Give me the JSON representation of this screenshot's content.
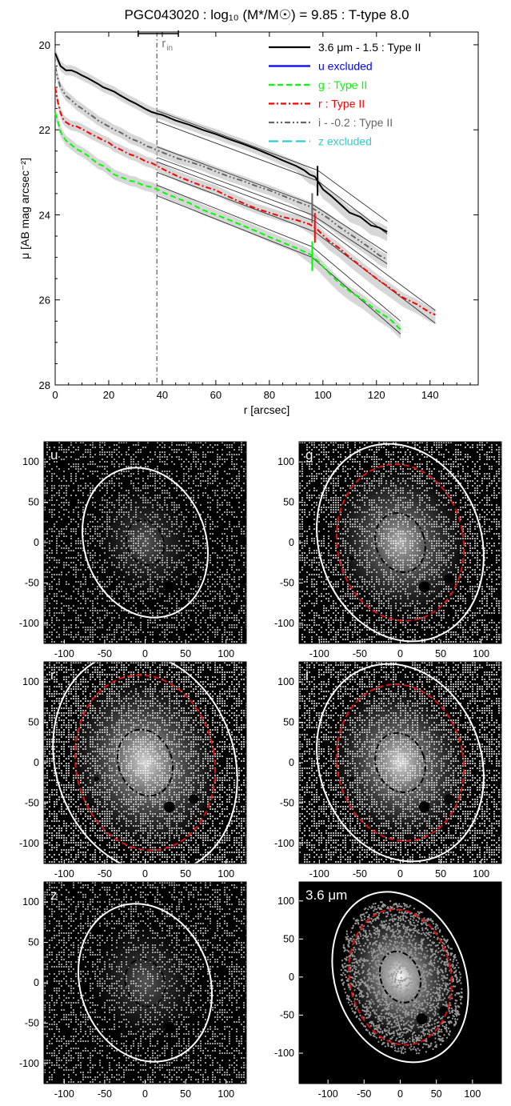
{
  "chart_data": [
    {
      "type": "line",
      "title": "PGC043020 : log₁₀ (M*/M☉) = 9.85 : T-type 8.0",
      "xlabel": "r [arcsec]",
      "ylabel": "μ [AB mag arcsec⁻²]",
      "xlim": [
        0,
        158
      ],
      "ylim": [
        28,
        19.7
      ],
      "y_inverted": true,
      "grid": false,
      "legend_position": "top-right",
      "x_ticks": [
        0,
        20,
        40,
        60,
        80,
        100,
        120,
        140
      ],
      "y_ticks": [
        20,
        22,
        24,
        26,
        28
      ],
      "annotation_label": "r",
      "annotation_label_sub": "in",
      "r_in": 38,
      "r_in_range": [
        31,
        46
      ],
      "series": [
        {
          "name": "3.6 μm - 1.5 : Type II",
          "color": "#000000",
          "dash": "solid",
          "x": [
            0,
            1,
            2,
            4,
            6,
            8,
            10,
            12,
            14,
            16,
            18,
            20,
            22,
            24,
            26,
            28,
            30,
            32,
            34,
            36,
            38,
            40,
            45,
            50,
            55,
            60,
            65,
            70,
            75,
            80,
            85,
            90,
            93,
            95,
            97,
            100,
            103,
            106,
            110,
            114,
            118,
            121,
            124
          ],
          "y": [
            20.2,
            20.35,
            20.5,
            20.6,
            20.6,
            20.65,
            20.72,
            20.78,
            20.85,
            20.92,
            21.0,
            21.05,
            21.1,
            21.18,
            21.25,
            21.32,
            21.38,
            21.45,
            21.52,
            21.58,
            21.62,
            21.65,
            21.78,
            21.88,
            22.0,
            22.1,
            22.22,
            22.33,
            22.45,
            22.58,
            22.72,
            22.85,
            22.95,
            23.05,
            23.1,
            23.4,
            23.55,
            23.72,
            23.95,
            24.05,
            24.25,
            24.3,
            24.4
          ],
          "profile_break": 98
        },
        {
          "name": "u excluded",
          "color": "#0000ff",
          "dash": "solid",
          "x": [],
          "y": []
        },
        {
          "name": "g : Type II",
          "color": "#00ff00",
          "dash": "dashed",
          "x": [
            0,
            1,
            2,
            3,
            4,
            6,
            8,
            10,
            12,
            14,
            16,
            18,
            20,
            22,
            24,
            26,
            28,
            30,
            32,
            34,
            36,
            38,
            42,
            46,
            50,
            55,
            60,
            65,
            70,
            75,
            80,
            85,
            90,
            95,
            98,
            102,
            106,
            110,
            115,
            120,
            125,
            129
          ],
          "y": [
            21.6,
            21.8,
            22.05,
            22.15,
            22.25,
            22.35,
            22.45,
            22.52,
            22.6,
            22.7,
            22.8,
            22.85,
            22.95,
            23.05,
            23.1,
            23.15,
            23.2,
            23.22,
            23.28,
            23.32,
            23.35,
            23.4,
            23.52,
            23.62,
            23.72,
            23.88,
            24.0,
            24.12,
            24.25,
            24.38,
            24.52,
            24.65,
            24.78,
            24.92,
            25.08,
            25.35,
            25.6,
            25.8,
            26.0,
            26.25,
            26.45,
            26.7
          ],
          "profile_break": 96
        },
        {
          "name": "r : Type II",
          "color": "#ff0000",
          "dash": "dashdot",
          "x": [
            0,
            1,
            2,
            3,
            4,
            6,
            8,
            10,
            12,
            14,
            16,
            18,
            20,
            22,
            24,
            26,
            28,
            30,
            32,
            34,
            36,
            38,
            42,
            46,
            50,
            55,
            60,
            65,
            70,
            75,
            80,
            85,
            90,
            95,
            98,
            102,
            106,
            110,
            115,
            120,
            125,
            130,
            135,
            140,
            142
          ],
          "y": [
            21.0,
            21.35,
            21.6,
            21.75,
            21.82,
            21.9,
            21.92,
            21.98,
            22.05,
            22.12,
            22.18,
            22.25,
            22.3,
            22.4,
            22.45,
            22.52,
            22.58,
            22.62,
            22.68,
            22.75,
            22.78,
            22.85,
            22.98,
            23.1,
            23.2,
            23.32,
            23.42,
            23.58,
            23.72,
            23.85,
            23.95,
            24.05,
            24.12,
            24.22,
            24.35,
            24.6,
            24.78,
            25.0,
            25.25,
            25.5,
            25.72,
            25.95,
            26.1,
            26.3,
            26.35
          ],
          "profile_break": 97
        },
        {
          "name": "i - -0.2 : Type II",
          "color": "#666666",
          "dash": "dashdotdot",
          "x": [
            0,
            1,
            2,
            4,
            6,
            8,
            10,
            12,
            14,
            16,
            18,
            20,
            22,
            24,
            26,
            28,
            30,
            32,
            34,
            36,
            38,
            42,
            46,
            50,
            55,
            60,
            65,
            70,
            75,
            80,
            85,
            90,
            95,
            98,
            102,
            106,
            110,
            114,
            118,
            121,
            124
          ],
          "y": [
            20.5,
            20.8,
            21.0,
            21.2,
            21.3,
            21.42,
            21.5,
            21.6,
            21.68,
            21.78,
            21.85,
            21.92,
            22.0,
            22.05,
            22.12,
            22.2,
            22.25,
            22.3,
            22.38,
            22.42,
            22.48,
            22.58,
            22.68,
            22.75,
            22.85,
            22.98,
            23.1,
            23.2,
            23.32,
            23.42,
            23.55,
            23.68,
            23.8,
            23.92,
            24.08,
            24.28,
            24.45,
            24.62,
            24.8,
            24.95,
            25.05
          ],
          "profile_break": 96
        },
        {
          "name": "z excluded",
          "color": "#33cccc",
          "dash": "longdash",
          "x": [],
          "y": []
        }
      ],
      "fit_segments": [
        {
          "series": "3.6 μm - 1.5 : Type II",
          "x": [
            38,
            98,
            124
          ],
          "y": [
            21.55,
            22.95,
            24.15
          ]
        },
        {
          "series": "3.6 μm - 1.5 : Type II",
          "x": [
            38,
            98,
            124
          ],
          "y": [
            21.8,
            23.2,
            24.45
          ]
        },
        {
          "series": "i - -0.2 : Type II",
          "x": [
            38,
            96,
            124
          ],
          "y": [
            22.4,
            23.75,
            24.9
          ]
        },
        {
          "series": "i - -0.2 : Type II",
          "x": [
            38,
            96,
            124
          ],
          "y": [
            22.65,
            24.0,
            25.15
          ]
        },
        {
          "series": "r : Type II",
          "x": [
            38,
            97,
            142
          ],
          "y": [
            22.75,
            24.15,
            26.25
          ]
        },
        {
          "series": "r : Type II",
          "x": [
            38,
            97,
            142
          ],
          "y": [
            23.0,
            24.4,
            26.55
          ]
        },
        {
          "series": "g : Type II",
          "x": [
            38,
            96,
            129
          ],
          "y": [
            23.3,
            24.75,
            26.5
          ]
        },
        {
          "series": "g : Type II",
          "x": [
            38,
            96,
            129
          ],
          "y": [
            23.55,
            25.0,
            26.8
          ]
        }
      ]
    },
    {
      "type": "image_panels",
      "x_ticks_offset": [
        -100,
        -50,
        0,
        50,
        100
      ],
      "y_ticks_offset": [
        100,
        50,
        0,
        -50,
        -100
      ],
      "panels": [
        {
          "label": "u",
          "xlim": [
            -125,
            125
          ],
          "ylim": [
            -125,
            125
          ],
          "has_break": false,
          "outer_rx": 75,
          "outer_ry": 95,
          "tilt": -20,
          "noise": "faint"
        },
        {
          "label": "g",
          "xlim": [
            -125,
            125
          ],
          "ylim": [
            -125,
            125
          ],
          "has_break": true,
          "outer_rx": 100,
          "outer_ry": 125,
          "tilt": -20,
          "noise": "medium"
        },
        {
          "label": "r",
          "xlim": [
            -125,
            125
          ],
          "ylim": [
            -125,
            125
          ],
          "has_break": true,
          "outer_rx": 110,
          "outer_ry": 140,
          "tilt": -20,
          "noise": "bright"
        },
        {
          "label": "i",
          "xlim": [
            -125,
            125
          ],
          "ylim": [
            -125,
            125
          ],
          "has_break": true,
          "outer_rx": 100,
          "outer_ry": 125,
          "tilt": -20,
          "noise": "bright"
        },
        {
          "label": "z",
          "xlim": [
            -125,
            125
          ],
          "ylim": [
            -125,
            125
          ],
          "has_break": false,
          "outer_rx": 80,
          "outer_ry": 100,
          "tilt": -20,
          "noise": "faint"
        },
        {
          "label": "3.6 μm",
          "xlim": [
            -140,
            140
          ],
          "ylim": [
            -140,
            125
          ],
          "has_break": true,
          "outer_rx": 90,
          "outer_ry": 115,
          "tilt": -20,
          "noise": "ir"
        }
      ]
    }
  ]
}
